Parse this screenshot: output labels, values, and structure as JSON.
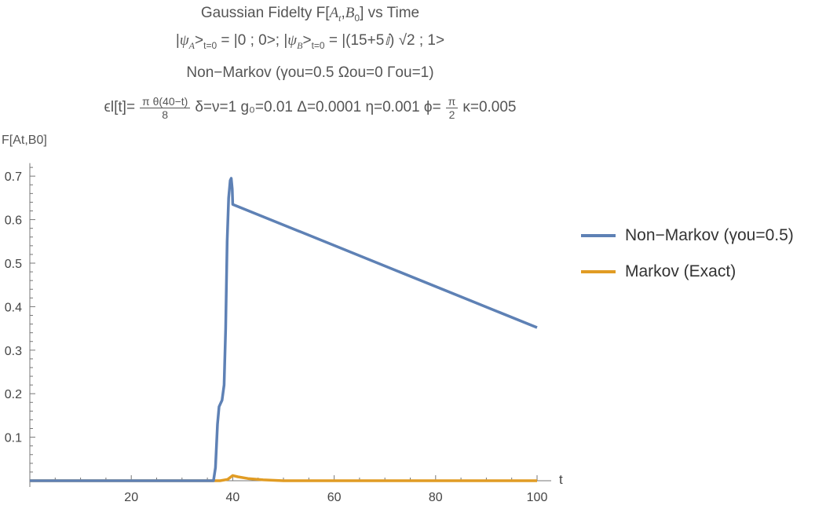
{
  "chart_data": {
    "type": "line",
    "title": "Gaussian Fidelty F[A_t,B_0] vs Time",
    "subtitle_lines": [
      "|ψA>t=0 = |0 ; 0>; |ψB>t=0 = |(15+5i) √2 ; 1>",
      "Non−Markov (γou=0.5  Ωou=0 Γou=1)",
      "ϵl[t]= π θ(40−t)/8  δ=ν=1 g0=0.01 Δ=0.0001 η=0.001 ϕ= π/2 κ=0.005"
    ],
    "xlabel": "t",
    "ylabel": "F[A_t,B_0]",
    "xlim": [
      0,
      100
    ],
    "ylim": [
      0,
      0.72
    ],
    "xticks": [
      20,
      40,
      60,
      80,
      100
    ],
    "yticks": [
      0.1,
      0.2,
      0.3,
      0.4,
      0.5,
      0.6,
      0.7
    ],
    "legend_position": "right",
    "series": [
      {
        "name": "Non−Markov (γou=0.5)",
        "color": "#5e81b5",
        "x": [
          0,
          36.2,
          36.6,
          37.0,
          37.3,
          37.9,
          38.3,
          38.6,
          38.9,
          39.2,
          39.5,
          39.7,
          39.9,
          40.0,
          100
        ],
        "y": [
          0,
          0,
          0.03,
          0.13,
          0.17,
          0.185,
          0.22,
          0.35,
          0.55,
          0.65,
          0.69,
          0.695,
          0.67,
          0.635,
          0.352
        ]
      },
      {
        "name": "Markov (Exact)",
        "color": "#e19c24",
        "x": [
          0,
          37.5,
          39,
          40,
          41,
          43,
          46,
          50,
          100
        ],
        "y": [
          0,
          0,
          0.003,
          0.012,
          0.009,
          0.005,
          0.002,
          0,
          0
        ]
      }
    ]
  },
  "title": {
    "line1": "Gaussian Fidelty F[",
    "At": "A",
    "t": "t",
    ",": ",",
    "B": "B",
    "zero": "0",
    "end": "] vs Time"
  },
  "texts": {
    "line2": "|ψ_A>_{t=0} = |0 ; 0>; |ψ_B>_{t=0} = |(15+5𝕚) √2 ; 1>",
    "line3": "Non−Markov (γou=0.5  Ωou=0 Γou=1)",
    "line4a": "ϵl[t]=",
    "frac_num": "π θ(40−t)",
    "frac_den": "8",
    "line4b": "δ=ν=1 g₀=0.01 Δ=0.0001 η=0.001 ϕ=",
    "phi_num": "π",
    "phi_den": "2",
    "line4c": "κ=0.005",
    "ylabel": "F[At,B0]",
    "xlabel": "t"
  },
  "legend": [
    "Non−Markov (γou=0.5)",
    "Markov (Exact)"
  ]
}
